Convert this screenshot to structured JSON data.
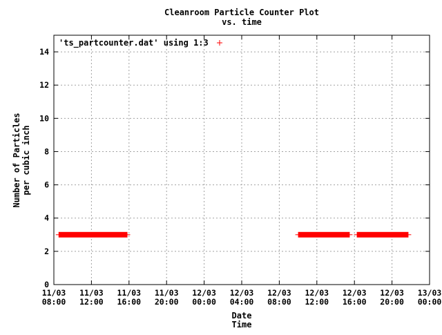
{
  "chart_data": {
    "type": "scatter",
    "title": "Cleanroom Particle Counter Plot",
    "subtitle": "vs. time",
    "xlabel_line1": "Date",
    "xlabel_line2": "Time",
    "ylabel_line1": "Number of Particles",
    "ylabel_line2": "per cubic inch",
    "ylim": [
      0,
      15
    ],
    "yticks": [
      0,
      2,
      4,
      6,
      8,
      10,
      12,
      14
    ],
    "xlim_hours": [
      0,
      40
    ],
    "xticks": [
      {
        "date": "11/03",
        "time": "08:00"
      },
      {
        "date": "11/03",
        "time": "12:00"
      },
      {
        "date": "11/03",
        "time": "16:00"
      },
      {
        "date": "11/03",
        "time": "20:00"
      },
      {
        "date": "12/03",
        "time": "00:00"
      },
      {
        "date": "12/03",
        "time": "04:00"
      },
      {
        "date": "12/03",
        "time": "08:00"
      },
      {
        "date": "12/03",
        "time": "12:00"
      },
      {
        "date": "12/03",
        "time": "16:00"
      },
      {
        "date": "12/03",
        "time": "20:00"
      },
      {
        "date": "13/03",
        "time": "00:00"
      }
    ],
    "grid": true,
    "legend_position": "top-left",
    "series": [
      {
        "name": "'ts_partcounter.dat' using 1:3",
        "color": "#ff0000",
        "marker": "plus",
        "segments": [
          {
            "start": "11/03 08:30",
            "end": "11/03 15:50",
            "value": 3
          },
          {
            "start": "12/03 10:00",
            "end": "12/03 15:30",
            "value": 3
          },
          {
            "start": "12/03 16:15",
            "end": "12/03 21:45",
            "value": 3
          }
        ]
      }
    ]
  }
}
